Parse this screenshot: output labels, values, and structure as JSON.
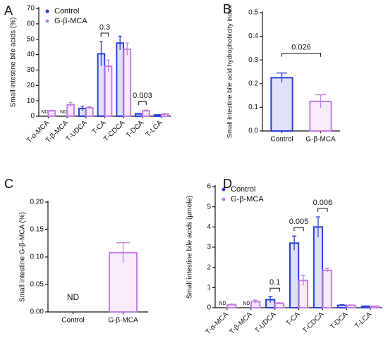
{
  "chart_data": [
    {
      "type": "bar",
      "panel": "A",
      "y_label": "Small intestine bile acids (%)",
      "categories": [
        "T-α-MCA",
        "T-β-MCA",
        "T-UDCA",
        "T-CA",
        "T-CDCA",
        "T-DCA",
        "T-LCA"
      ],
      "series": [
        {
          "name": "Control",
          "color": "#2b3fd6",
          "values": [
            null,
            null,
            5,
            40.5,
            47.5,
            1.5,
            0.8
          ],
          "errors": [
            null,
            null,
            1.5,
            8,
            4.5,
            0.3,
            0.2
          ],
          "value_labels": [
            "ND",
            "ND",
            null,
            null,
            null,
            null,
            null
          ]
        },
        {
          "name": "G-β-MCA",
          "color": "#c47de8",
          "values": [
            3.5,
            7.5,
            5.5,
            32.5,
            43.5,
            3.5,
            1.3
          ],
          "errors": [
            0.4,
            1.5,
            0.8,
            4,
            4,
            0.5,
            0.4
          ]
        }
      ],
      "annotations": [
        {
          "text": "0.3",
          "category": "T-CA"
        },
        {
          "text": "0.003",
          "category": "T-DCA"
        }
      ],
      "ylim": [
        0,
        70
      ],
      "yticks": [
        0,
        10,
        20,
        30,
        40,
        50,
        60,
        70
      ],
      "legend": "top-left"
    },
    {
      "type": "bar",
      "panel": "B",
      "y_label": "Small intestine bile acid hydrophobicity index",
      "categories": [
        "Control",
        "G-β-MCA"
      ],
      "values": [
        0.225,
        0.125
      ],
      "errors": [
        0.02,
        0.028
      ],
      "colors": [
        "#2b3fd6",
        "#c47de8"
      ],
      "annotations": [
        {
          "text": "0.026"
        }
      ],
      "ylim": [
        0,
        0.5
      ],
      "yticks": [
        {
          "value": 0,
          "label": "0.0"
        },
        0.1,
        0.2,
        0.3,
        0.4,
        0.5
      ]
    },
    {
      "type": "bar",
      "panel": "C",
      "y_label": "Small intestine G-β-MCA (%)",
      "categories": [
        "Control",
        "G-β-MCA"
      ],
      "values": [
        null,
        0.108
      ],
      "errors": [
        null,
        0.018
      ],
      "value_labels": [
        "ND",
        null
      ],
      "colors": [
        "#2b3fd6",
        "#c47de8"
      ],
      "ylim": [
        0,
        0.2
      ],
      "yticks": [
        {
          "value": 0,
          "label": "0.00"
        },
        {
          "value": 0.05,
          "label": "0.05"
        },
        {
          "value": 0.1,
          "label": "0.10"
        },
        {
          "value": 0.15,
          "label": "0.15"
        },
        {
          "value": 0.2,
          "label": "0.20"
        }
      ]
    },
    {
      "type": "bar",
      "panel": "D",
      "y_label": "Small intestine bile acids (μmole)",
      "categories": [
        "T-α-MCA",
        "T-β-MCA",
        "T-UDCA",
        "T-CA",
        "T-CDCA",
        "T-DCA",
        "T-LCA"
      ],
      "series": [
        {
          "name": "Control",
          "color": "#2b3fd6",
          "values": [
            null,
            null,
            0.4,
            3.2,
            4.0,
            0.12,
            0.07
          ],
          "errors": [
            null,
            null,
            0.15,
            0.35,
            0.5,
            0.03,
            0.02
          ],
          "value_labels": [
            "ND",
            "ND",
            null,
            null,
            null,
            null,
            null
          ]
        },
        {
          "name": "G-β-MCA",
          "color": "#c47de8",
          "values": [
            0.15,
            0.3,
            0.22,
            1.35,
            1.85,
            0.12,
            0.07
          ],
          "errors": [
            0.03,
            0.08,
            0.03,
            0.25,
            0.1,
            0.02,
            0.02
          ]
        }
      ],
      "annotations": [
        {
          "text": "0.1",
          "category": "T-UDCA"
        },
        {
          "text": "0.005",
          "category": "T-CA"
        },
        {
          "text": "0.006",
          "category": "T-CDCA"
        }
      ],
      "ylim": [
        0,
        6
      ],
      "yticks": [
        0,
        1,
        2,
        3,
        4,
        5,
        6
      ],
      "legend": "top-left"
    }
  ]
}
